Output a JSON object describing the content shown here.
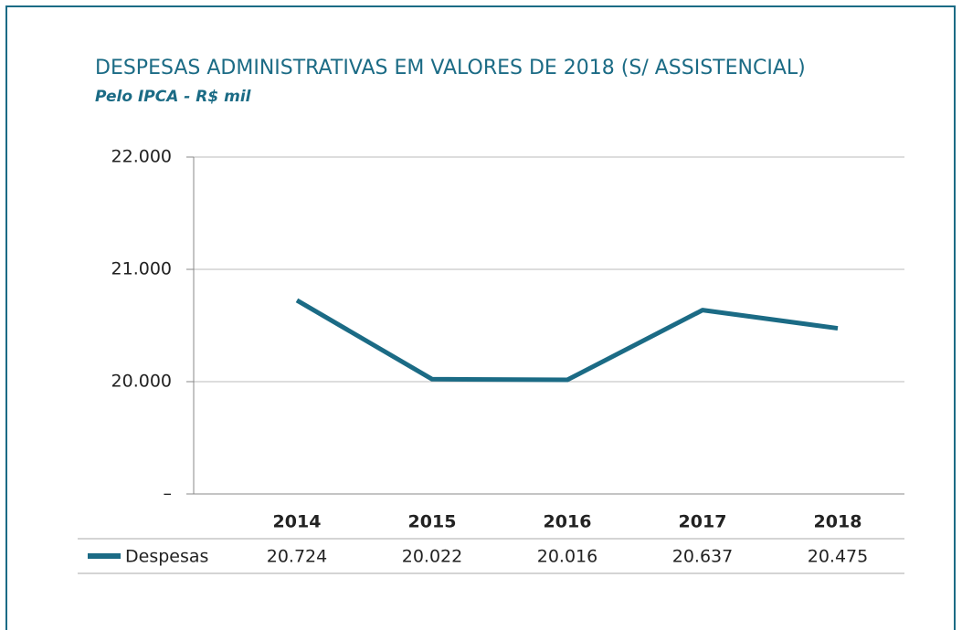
{
  "chart_data": {
    "type": "line",
    "title": "DESPESAS ADMINISTRATIVAS EM VALORES DE 2018 (S/ ASSISTENCIAL)",
    "subtitle": "Pelo IPCA - R$ mil",
    "categories": [
      "2014",
      "2015",
      "2016",
      "2017",
      "2018"
    ],
    "series": [
      {
        "name": "Despesas",
        "color": "#1b6b85",
        "values": [
          20724,
          20022,
          20016,
          20637,
          20475
        ],
        "value_labels": [
          "20.724",
          "20.022",
          "20.016",
          "20.637",
          "20.475"
        ]
      }
    ],
    "ylim": [
      19000,
      22000
    ],
    "yticks": [
      {
        "value": 19000,
        "label": "–"
      },
      {
        "value": 20000,
        "label": "20.000"
      },
      {
        "value": 21000,
        "label": "21.000"
      },
      {
        "value": 22000,
        "label": "22.000"
      }
    ],
    "grid": true
  }
}
